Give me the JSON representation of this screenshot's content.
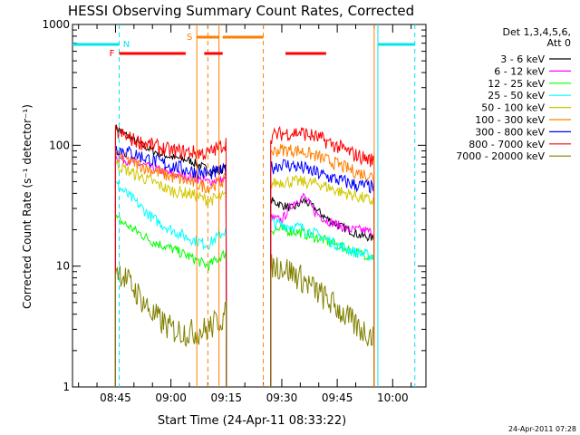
{
  "chart_data": {
    "type": "line",
    "title": "HESSI Observing Summary Count Rates, Corrected",
    "xlabel": "Start Time (24-Apr-11 08:33:22)",
    "ylabel": "Corrected Count Rate (s⁻¹ detector⁻¹)",
    "yscale": "log",
    "xlim": [
      "08:33:22",
      "10:09:00"
    ],
    "ylim": [
      1,
      1000
    ],
    "x_ticks": [
      "08:45",
      "09:00",
      "09:15",
      "09:30",
      "09:45",
      "10:00"
    ],
    "y_ticks": [
      1,
      10,
      100,
      1000
    ],
    "y_tick_labels": [
      "1",
      "10",
      "100",
      "1000"
    ],
    "legend_title": "Det 1,3,4,5,6,",
    "legend_subtitle": "Att 0",
    "legend_position": "right",
    "footer_date": "24-Apr-2011 07:28",
    "series": [
      {
        "name": "3 - 6 keV",
        "color": "#000000",
        "segments": [
          {
            "t": [
              "08:45",
              "08:50",
              "08:55",
              "09:00",
              "09:05",
              "09:08",
              "09:11",
              "09:15"
            ],
            "v": [
              140,
              110,
              90,
              80,
              75,
              68,
              60,
              65
            ]
          },
          {
            "t": [
              "09:27",
              "09:30",
              "09:33",
              "09:36",
              "09:39",
              "09:42",
              "09:45",
              "09:48",
              "09:51",
              "09:55"
            ],
            "v": [
              35,
              32,
              30,
              35,
              30,
              25,
              22,
              20,
              18,
              17
            ]
          }
        ]
      },
      {
        "name": "6 - 12 keV",
        "color": "#ff00ff",
        "segments": [
          {
            "t": [
              "08:45",
              "08:50",
              "08:55",
              "09:00",
              "09:05",
              "09:10",
              "09:15"
            ],
            "v": [
              80,
              72,
              65,
              58,
              55,
              50,
              52
            ]
          },
          {
            "t": [
              "09:27",
              "09:30",
              "09:33",
              "09:36",
              "09:39",
              "09:42",
              "09:45",
              "09:48",
              "09:51",
              "09:55"
            ],
            "v": [
              25,
              24,
              33,
              38,
              28,
              24,
              22,
              20,
              20,
              19
            ]
          }
        ]
      },
      {
        "name": "12 - 25 keV",
        "color": "#00ff00",
        "segments": [
          {
            "t": [
              "08:45",
              "08:50",
              "08:55",
              "09:00",
              "09:05",
              "09:10",
              "09:15"
            ],
            "v": [
              25,
              20,
              16,
              14,
              12,
              10,
              13
            ]
          },
          {
            "t": [
              "09:27",
              "09:30",
              "09:35",
              "09:40",
              "09:45",
              "09:50",
              "09:55"
            ],
            "v": [
              20,
              20,
              19,
              17,
              15,
              13,
              12
            ]
          }
        ]
      },
      {
        "name": "25 - 50 keV",
        "color": "#00ffff",
        "segments": [
          {
            "t": [
              "08:45",
              "08:50",
              "08:55",
              "09:00",
              "09:05",
              "09:10",
              "09:15"
            ],
            "v": [
              48,
              35,
              25,
              20,
              17,
              15,
              20
            ]
          },
          {
            "t": [
              "09:27",
              "09:30",
              "09:35",
              "09:40",
              "09:45",
              "09:50",
              "09:55"
            ],
            "v": [
              23,
              22,
              21,
              18,
              15,
              13,
              12
            ]
          }
        ]
      },
      {
        "name": "50 - 100 keV",
        "color": "#d2c800",
        "segments": [
          {
            "t": [
              "08:45",
              "08:50",
              "08:55",
              "09:00",
              "09:05",
              "09:10",
              "09:15"
            ],
            "v": [
              70,
              58,
              50,
              42,
              40,
              35,
              38
            ]
          },
          {
            "t": [
              "09:27",
              "09:30",
              "09:35",
              "09:40",
              "09:45",
              "09:50",
              "09:55"
            ],
            "v": [
              48,
              50,
              50,
              48,
              42,
              38,
              34
            ]
          }
        ]
      },
      {
        "name": "100 - 300 keV",
        "color": "#ff7f00",
        "segments": [
          {
            "t": [
              "08:45",
              "08:50",
              "08:55",
              "09:00",
              "09:05",
              "09:10",
              "09:15"
            ],
            "v": [
              82,
              72,
              62,
              55,
              50,
              45,
              52
            ]
          },
          {
            "t": [
              "09:27",
              "09:30",
              "09:35",
              "09:40",
              "09:45",
              "09:50",
              "09:55"
            ],
            "v": [
              88,
              92,
              90,
              80,
              70,
              60,
              55
            ]
          }
        ]
      },
      {
        "name": "300 - 800 keV",
        "color": "#0000ff",
        "segments": [
          {
            "t": [
              "08:45",
              "08:50",
              "08:55",
              "09:00",
              "09:05",
              "09:10",
              "09:15"
            ],
            "v": [
              95,
              85,
              75,
              68,
              62,
              58,
              62
            ]
          },
          {
            "t": [
              "09:27",
              "09:30",
              "09:35",
              "09:40",
              "09:45",
              "09:50",
              "09:55"
            ],
            "v": [
              65,
              70,
              66,
              58,
              52,
              47,
              45
            ]
          }
        ]
      },
      {
        "name": "800 - 7000 keV",
        "color": "#ff0000",
        "segments": [
          {
            "t": [
              "08:45",
              "08:50",
              "08:55",
              "09:00",
              "09:05",
              "09:10",
              "09:15"
            ],
            "v": [
              130,
              110,
              100,
              90,
              88,
              85,
              105
            ]
          },
          {
            "t": [
              "09:27",
              "09:30",
              "09:35",
              "09:40",
              "09:45",
              "09:50",
              "09:55"
            ],
            "v": [
              118,
              125,
              128,
              115,
              98,
              83,
              74
            ]
          }
        ]
      },
      {
        "name": "7000 - 20000 keV",
        "color": "#808000",
        "segments": [
          {
            "t": [
              "08:45",
              "08:50",
              "08:55",
              "09:00",
              "09:05",
              "09:10",
              "09:15"
            ],
            "v": [
              10,
              6.5,
              4,
              3,
              2.8,
              3,
              4
            ]
          },
          {
            "t": [
              "09:27",
              "09:30",
              "09:35",
              "09:40",
              "09:45",
              "09:50",
              "09:55"
            ],
            "v": [
              10,
              10,
              8,
              6,
              4.5,
              3.2,
              2.6
            ]
          }
        ]
      }
    ],
    "markers": {
      "N": {
        "label": "N",
        "color": "#00e5ee",
        "bars": [
          {
            "start": "08:33:22",
            "end": "08:46"
          },
          {
            "start": "09:56",
            "end": "10:06"
          }
        ],
        "vlines": [
          {
            "t": "08:46",
            "style": "dashed"
          },
          {
            "t": "09:56",
            "style": "solid"
          },
          {
            "t": "10:06",
            "style": "dashed"
          }
        ]
      },
      "S": {
        "label": "S",
        "color": "#ff7f00",
        "bars": [
          {
            "start": "09:07",
            "end": "09:13"
          },
          {
            "start": "09:14",
            "end": "09:25"
          }
        ],
        "vlines": [
          {
            "t": "09:07",
            "style": "solid"
          },
          {
            "t": "09:10",
            "style": "dashed"
          },
          {
            "t": "09:13",
            "style": "solid"
          },
          {
            "t": "09:25",
            "style": "dashed"
          },
          {
            "t": "09:55",
            "style": "solid"
          }
        ]
      },
      "F": {
        "label": "F",
        "color": "#ff0000",
        "bars": [
          {
            "start": "08:46",
            "end": "09:04"
          },
          {
            "start": "09:09",
            "end": "09:14"
          },
          {
            "start": "09:31",
            "end": "09:42"
          }
        ]
      }
    }
  }
}
